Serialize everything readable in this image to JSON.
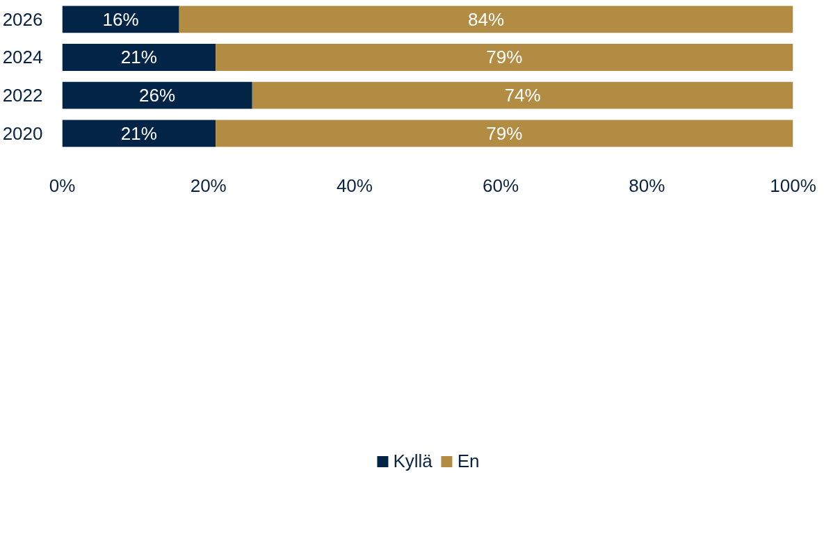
{
  "chart_data": {
    "type": "bar",
    "orientation": "horizontal",
    "stacked": true,
    "categories": [
      "2026",
      "2024",
      "2022",
      "2020"
    ],
    "series": [
      {
        "name": "Kyllä",
        "color": "#022446",
        "values": [
          16,
          21,
          26,
          21
        ],
        "value_labels": [
          "16%",
          "21%",
          "26%",
          "21%"
        ]
      },
      {
        "name": "En",
        "color": "#b38c44",
        "values": [
          84,
          79,
          74,
          79
        ],
        "value_labels": [
          "84%",
          "79%",
          "74%",
          "79%"
        ]
      }
    ],
    "xlim": [
      0,
      100
    ],
    "xticks": [
      {
        "value": 0,
        "label": "0%"
      },
      {
        "value": 20,
        "label": "20%"
      },
      {
        "value": 40,
        "label": "40%"
      },
      {
        "value": 60,
        "label": "60%"
      },
      {
        "value": 80,
        "label": "80%"
      },
      {
        "value": 100,
        "label": "100%"
      }
    ],
    "grid": false,
    "legend": "bottom"
  }
}
